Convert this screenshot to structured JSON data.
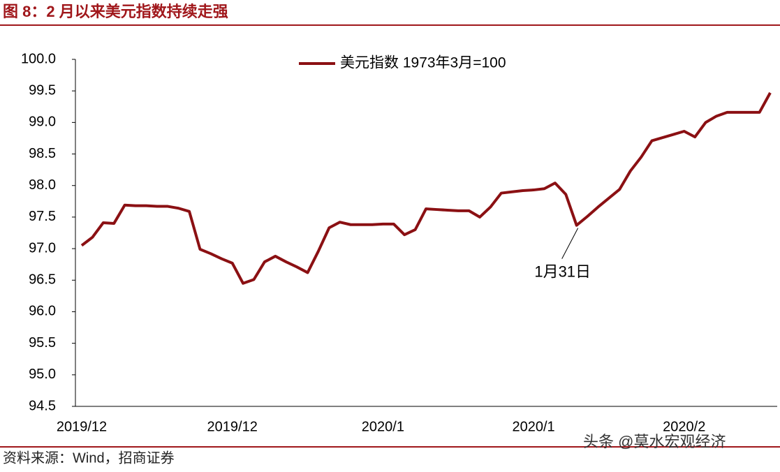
{
  "title": "图 8：2 月以来美元指数持续走强",
  "source": "资料来源：Wind，招商证券",
  "watermark": "头条 @莫水宏观经济",
  "chart_data": {
    "type": "line",
    "categories": [
      "2019/12",
      null,
      null,
      null,
      null,
      null,
      null,
      null,
      null,
      null,
      null,
      null,
      null,
      null,
      "2019/12",
      null,
      null,
      null,
      null,
      null,
      null,
      null,
      null,
      null,
      null,
      null,
      null,
      null,
      "2020/1",
      null,
      null,
      null,
      null,
      null,
      null,
      null,
      null,
      null,
      null,
      null,
      null,
      null,
      "2020/1",
      null,
      null,
      null,
      null,
      null,
      null,
      null,
      null,
      null,
      null,
      null,
      null,
      null,
      "2020/2",
      null,
      null,
      null,
      null,
      null,
      null,
      null,
      null
    ],
    "series": [
      {
        "name": "美元指数 1973年3月=100",
        "color": "#8b1013",
        "values": [
          97.05,
          97.18,
          97.41,
          97.4,
          97.69,
          97.68,
          97.68,
          97.67,
          97.67,
          97.64,
          97.59,
          96.99,
          96.92,
          96.84,
          96.77,
          96.45,
          96.51,
          96.79,
          96.88,
          96.79,
          96.71,
          96.62,
          96.96,
          97.33,
          97.42,
          97.38,
          97.38,
          97.38,
          97.39,
          97.39,
          97.22,
          97.3,
          97.63,
          97.62,
          97.61,
          97.6,
          97.6,
          97.5,
          97.66,
          97.88,
          97.9,
          97.92,
          97.93,
          97.95,
          98.04,
          97.86,
          97.37,
          97.51,
          97.66,
          97.8,
          97.94,
          98.23,
          98.45,
          98.71,
          98.76,
          98.81,
          98.86,
          98.77,
          99.0,
          99.1,
          99.16,
          99.16,
          99.16,
          99.16,
          99.47
        ]
      }
    ],
    "ylim": [
      94.5,
      100
    ],
    "yticks": [
      94.5,
      {
        "value": 95,
        "label": "95.0"
      },
      95.5,
      {
        "value": 96,
        "label": "96.0"
      },
      96.5,
      {
        "value": 97,
        "label": "97.0"
      },
      97.5,
      {
        "value": 98,
        "label": "98.0"
      },
      98.5,
      {
        "value": 99,
        "label": "99.0"
      },
      99.5,
      {
        "value": 100,
        "label": "100.0"
      }
    ],
    "annotations": [
      {
        "text": "1月31日",
        "index": 46
      }
    ],
    "legend": "top"
  }
}
